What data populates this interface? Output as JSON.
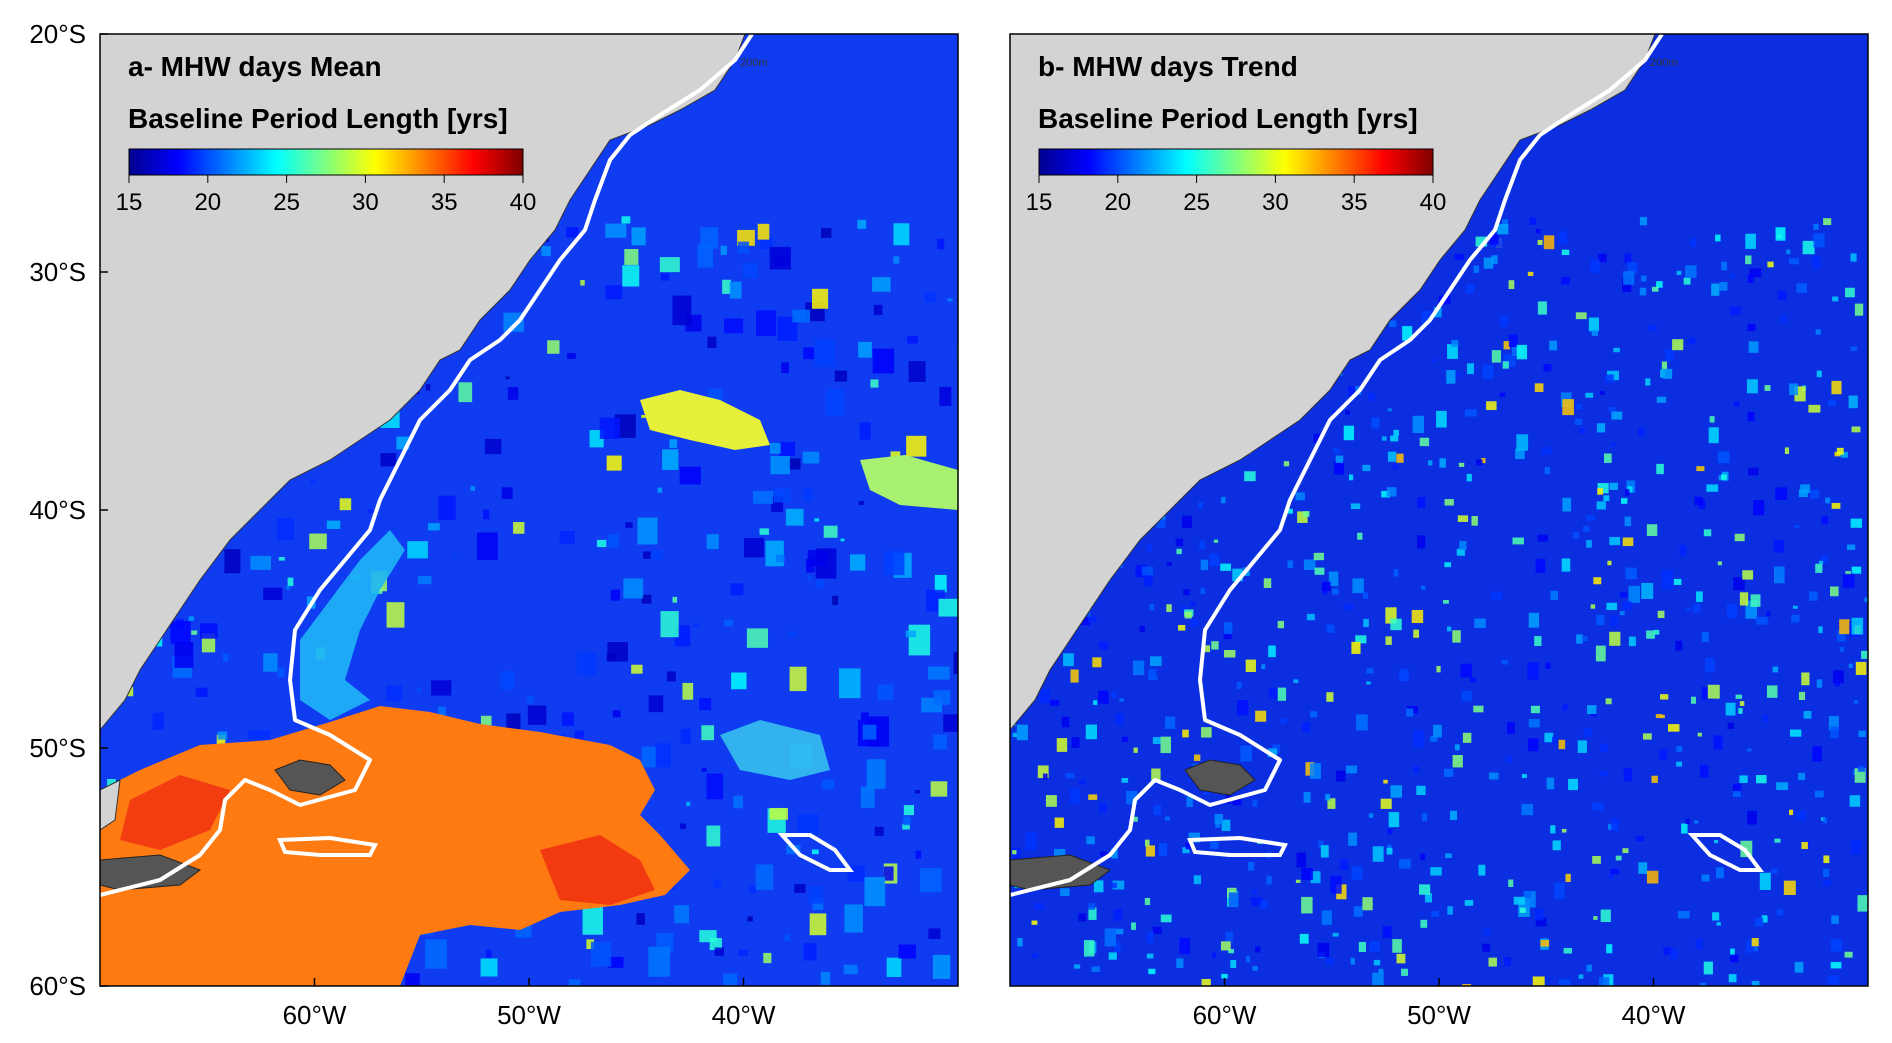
{
  "figure": {
    "y_ticks": [
      "20°S",
      "30°S",
      "40°S",
      "50°S",
      "60°S"
    ],
    "x_ticks": [
      "60°W",
      "50°W",
      "40°W"
    ],
    "isobath_label": "200m"
  },
  "panels": [
    {
      "id": "a",
      "title": "a- MHW days Mean",
      "colorbar_title": "Baseline Period Length [yrs]",
      "colorbar_ticks": [
        "15",
        "20",
        "25",
        "30",
        "35",
        "40"
      ],
      "pattern": "mean"
    },
    {
      "id": "b",
      "title": "b- MHW days Trend",
      "colorbar_title": "Baseline Period Length [yrs]",
      "colorbar_ticks": [
        "15",
        "20",
        "25",
        "30",
        "35",
        "40"
      ],
      "pattern": "trend"
    }
  ],
  "map_data": {
    "lat_range": [
      -60,
      -20
    ],
    "lon_range": [
      -70,
      -30
    ],
    "colorbar_range": [
      15,
      40
    ],
    "colormap": "jet",
    "land_color": "#d3d3d3",
    "shelf_break_line_color": "#ffffff"
  }
}
